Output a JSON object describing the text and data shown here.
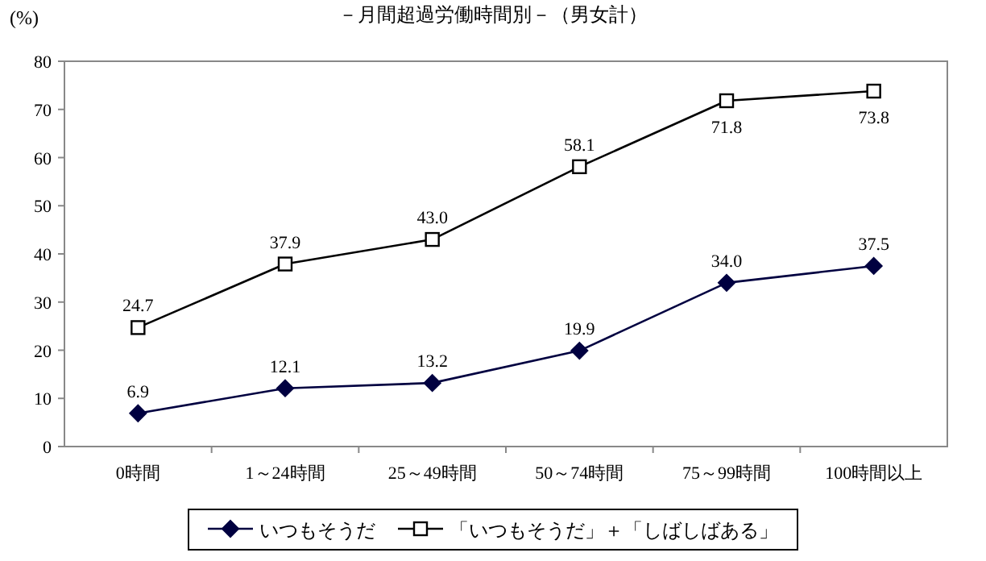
{
  "chart_data": {
    "type": "line",
    "title": "－月間超過労働時間別－（男女計）",
    "ylabel": "(%)",
    "categories": [
      "0時間",
      "1～24時間",
      "25～49時間",
      "50～74時間",
      "75～99時間",
      "100時間以上"
    ],
    "ylim": [
      0,
      80
    ],
    "yticks": [
      0,
      10,
      20,
      30,
      40,
      50,
      60,
      70,
      80
    ],
    "grid": false,
    "legend": "bottom",
    "series": [
      {
        "name": "いつもそうだ",
        "color": "#000040",
        "marker": "diamond",
        "values": [
          6.9,
          12.1,
          13.2,
          19.9,
          34.0,
          37.5
        ],
        "value_labels": [
          "6.9",
          "12.1",
          "13.2",
          "19.9",
          "34.0",
          "37.5"
        ]
      },
      {
        "name": "「いつもそうだ」＋「しばしばある」",
        "color": "#000000",
        "marker": "square",
        "values": [
          24.7,
          37.9,
          43.0,
          58.1,
          71.8,
          73.8
        ],
        "value_labels": [
          "24.7",
          "37.9",
          "43.0",
          "58.1",
          "71.8",
          "73.8"
        ]
      }
    ]
  }
}
